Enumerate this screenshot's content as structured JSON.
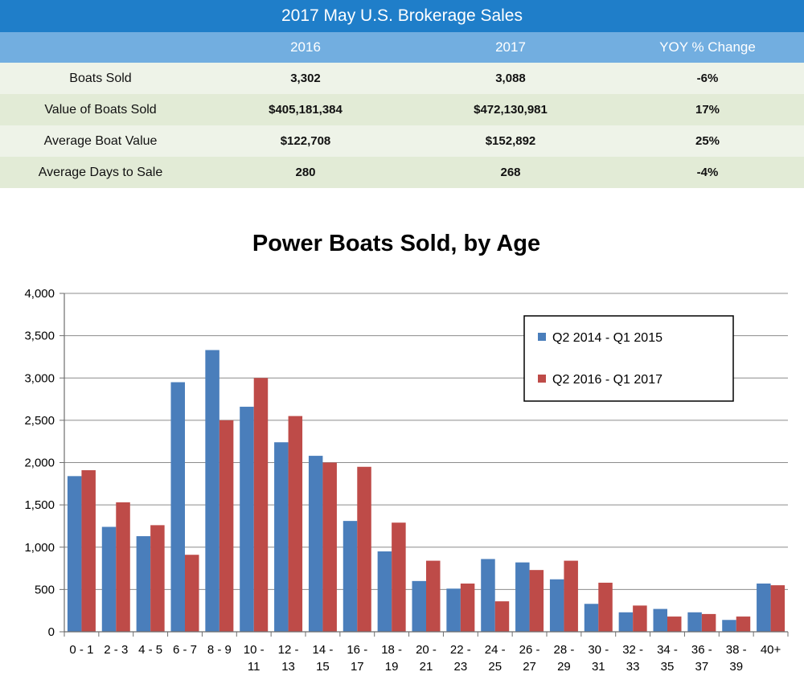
{
  "table": {
    "title": "2017 May U.S. Brokerage Sales",
    "headers": [
      "",
      "2016",
      "2017",
      "YOY % Change"
    ],
    "rows": [
      [
        "Boats Sold",
        "3,302",
        "3,088",
        "-6%"
      ],
      [
        "Value of Boats Sold",
        "$405,181,384",
        "$472,130,981",
        "17%"
      ],
      [
        "Average Boat Value",
        "$122,708",
        "$152,892",
        "25%"
      ],
      [
        "Average Days to Sale",
        "280",
        "268",
        "-4%"
      ]
    ]
  },
  "chart_data": {
    "type": "bar",
    "title": "Power Boats Sold, by Age",
    "xlabel": "",
    "ylabel": "",
    "ylim": [
      0,
      4000
    ],
    "yticks": [
      0,
      500,
      1000,
      1500,
      2000,
      2500,
      3000,
      3500,
      4000
    ],
    "ytick_labels": [
      "0",
      "500",
      "1,000",
      "1,500",
      "2,000",
      "2,500",
      "3,000",
      "3,500",
      "4,000"
    ],
    "grid": true,
    "legend_position": "top-right",
    "categories": [
      [
        "0 - 1"
      ],
      [
        "2 - 3"
      ],
      [
        "4 - 5"
      ],
      [
        "6 - 7"
      ],
      [
        "8 - 9"
      ],
      [
        "10 -",
        "11"
      ],
      [
        "12 -",
        "13"
      ],
      [
        "14 -",
        "15"
      ],
      [
        "16 -",
        "17"
      ],
      [
        "18 -",
        "19"
      ],
      [
        "20 -",
        "21"
      ],
      [
        "22 -",
        "23"
      ],
      [
        "24 -",
        "25"
      ],
      [
        "26 -",
        "27"
      ],
      [
        "28 -",
        "29"
      ],
      [
        "30 -",
        "31"
      ],
      [
        "32 -",
        "33"
      ],
      [
        "34 -",
        "35"
      ],
      [
        "36 -",
        "37"
      ],
      [
        "38 -",
        "39"
      ],
      [
        "40+"
      ]
    ],
    "series": [
      {
        "name": "Q2 2014 - Q1 2015",
        "color": "#4a7ebb",
        "values": [
          1840,
          1240,
          1130,
          2950,
          3330,
          2660,
          2240,
          2080,
          1310,
          950,
          600,
          510,
          860,
          820,
          620,
          330,
          230,
          270,
          230,
          140,
          570
        ]
      },
      {
        "name": "Q2 2016 - Q1 2017",
        "color": "#be4b48",
        "values": [
          1910,
          1530,
          1260,
          910,
          2500,
          3000,
          2550,
          2000,
          1950,
          1290,
          840,
          570,
          360,
          730,
          840,
          580,
          310,
          180,
          210,
          180,
          550
        ]
      }
    ]
  }
}
